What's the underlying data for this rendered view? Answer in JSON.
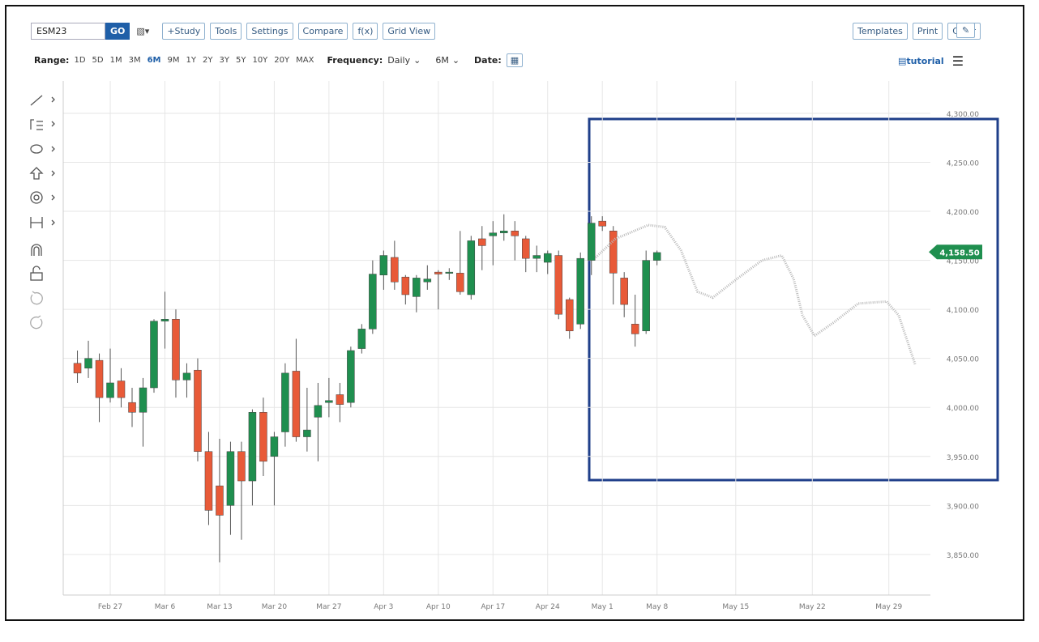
{
  "toolbar": {
    "symbol": "ESM23",
    "go": "GO",
    "buttons": [
      "+Study",
      "Tools",
      "Settings",
      "Compare",
      "f(x)",
      "Grid View"
    ],
    "right_buttons": [
      "Templates",
      "Print",
      "Clear"
    ]
  },
  "range_bar": {
    "range_label": "Range:",
    "ranges": [
      "1D",
      "5D",
      "1M",
      "3M",
      "6M",
      "9M",
      "1Y",
      "2Y",
      "3Y",
      "5Y",
      "10Y",
      "20Y",
      "MAX"
    ],
    "selected_range": 4,
    "frequency_label": "Frequency:",
    "frequency": "Daily",
    "period": "6M",
    "date_label": "Date:",
    "tutorial": "tutorial"
  },
  "chart_data": {
    "type": "candlestick",
    "x": [
      0,
      1,
      2,
      3,
      4,
      5,
      6,
      7,
      8,
      9,
      10,
      11,
      12,
      13,
      14,
      15,
      16,
      17,
      18,
      19,
      20,
      21,
      22,
      23,
      24,
      25,
      26,
      27,
      28,
      29,
      30,
      31,
      32,
      33,
      34,
      35,
      36,
      37,
      38,
      39,
      40,
      41,
      42,
      43,
      44,
      45,
      46,
      47,
      48,
      49,
      50,
      51,
      52,
      53
    ],
    "open": [
      4045,
      4040,
      4048,
      4010,
      4027,
      4005,
      3995,
      4020,
      4088,
      4090,
      4028,
      4038,
      3955,
      3920,
      3900,
      3955,
      3925,
      3995,
      3950,
      3975,
      4037,
      3970,
      3990,
      4005,
      4013,
      4005,
      4060,
      4080,
      4135,
      4153,
      4133,
      4113,
      4128,
      4138,
      4137,
      4137,
      4115,
      4172,
      4175,
      4178,
      4180,
      4172,
      4152,
      4148,
      4155,
      4110,
      4085,
      4150,
      4190,
      4180,
      4132,
      4085,
      4078,
      4150
    ],
    "high": [
      4058,
      4068,
      4055,
      4060,
      4040,
      4020,
      4030,
      4090,
      4118,
      4100,
      4045,
      4050,
      3975,
      3968,
      3965,
      3965,
      3998,
      4010,
      3975,
      4045,
      4070,
      4020,
      4025,
      4030,
      4025,
      4062,
      4085,
      4150,
      4160,
      4170,
      4135,
      4135,
      4145,
      4140,
      4142,
      4180,
      4175,
      4185,
      4190,
      4197,
      4190,
      4175,
      4165,
      4160,
      4160,
      4112,
      4158,
      4195,
      4195,
      4185,
      4138,
      4115,
      4160,
      4160
    ],
    "low": [
      4025,
      4030,
      3985,
      4005,
      4000,
      3980,
      3960,
      4015,
      4060,
      4010,
      4010,
      3945,
      3880,
      3842,
      3870,
      3865,
      3900,
      3930,
      3900,
      3960,
      3965,
      3955,
      3945,
      3990,
      3985,
      4000,
      4055,
      4075,
      4120,
      4120,
      4105,
      4097,
      4120,
      4100,
      4130,
      4115,
      4110,
      4140,
      4145,
      4170,
      4150,
      4138,
      4138,
      4136,
      4090,
      4070,
      4080,
      4135,
      4180,
      4105,
      4092,
      4062,
      4075,
      4145
    ],
    "close": [
      4035,
      4050,
      4010,
      4025,
      4010,
      3995,
      4020,
      4088,
      4090,
      4028,
      4035,
      3955,
      3895,
      3890,
      3955,
      3925,
      3995,
      3945,
      3970,
      4035,
      3970,
      3977,
      4002,
      4007,
      4003,
      4058,
      4080,
      4136,
      4155,
      4128,
      4115,
      4132,
      4131,
      4136,
      4138,
      4118,
      4170,
      4165,
      4178,
      4180,
      4175,
      4152,
      4155,
      4157,
      4095,
      4078,
      4152,
      4188,
      4185,
      4137,
      4105,
      4075,
      4150,
      4158
    ],
    "up_color": "#1f8f4f",
    "down_color": "#e85a38",
    "projection": {
      "color": "#b8b8b8",
      "x": [
        47.4,
        49.2,
        52.2,
        53.7,
        55.2,
        56.7,
        58.1,
        60.3,
        62.6,
        64.4,
        65.5,
        66.3,
        67.4,
        69.2,
        71.4,
        74.0,
        75.1,
        76.6
      ],
      "values": [
        4153,
        4172,
        4186,
        4184,
        4160,
        4118,
        4112,
        4131,
        4150,
        4155,
        4131,
        4094,
        4073,
        4087,
        4106,
        4108,
        4094,
        4044
      ]
    },
    "last_price": 4158.5,
    "last_price_label": "4,158.50",
    "xlim": [
      -1.3,
      78
    ],
    "ylim": [
      3808.6,
      4333
    ],
    "xticks": [
      {
        "value": 3,
        "label": "Feb 27"
      },
      {
        "value": 8,
        "label": "Mar 6"
      },
      {
        "value": 13,
        "label": "Mar 13"
      },
      {
        "value": 18,
        "label": "Mar 20"
      },
      {
        "value": 23,
        "label": "Mar 27"
      },
      {
        "value": 28,
        "label": "Apr 3"
      },
      {
        "value": 33,
        "label": "Apr 10"
      },
      {
        "value": 38,
        "label": "Apr 17"
      },
      {
        "value": 43,
        "label": "Apr 24"
      },
      {
        "value": 48,
        "label": "May 1"
      },
      {
        "value": 53,
        "label": "May 8"
      },
      {
        "value": 60.2,
        "label": "May 15"
      },
      {
        "value": 67.2,
        "label": "May 22"
      },
      {
        "value": 74.2,
        "label": "May 29"
      }
    ],
    "yticks": [
      {
        "value": 3850,
        "label": "3,850.00"
      },
      {
        "value": 3900,
        "label": "3,900.00"
      },
      {
        "value": 3950,
        "label": "3,950.00"
      },
      {
        "value": 4000,
        "label": "4,000.00"
      },
      {
        "value": 4050,
        "label": "4,050.00"
      },
      {
        "value": 4100,
        "label": "4,100.00"
      },
      {
        "value": 4150,
        "label": "4,150.00"
      },
      {
        "value": 4200,
        "label": "4,200.00"
      },
      {
        "value": 4250,
        "label": "4,250.00"
      },
      {
        "value": 4300,
        "label": "4,300.00"
      }
    ],
    "grid": true
  }
}
